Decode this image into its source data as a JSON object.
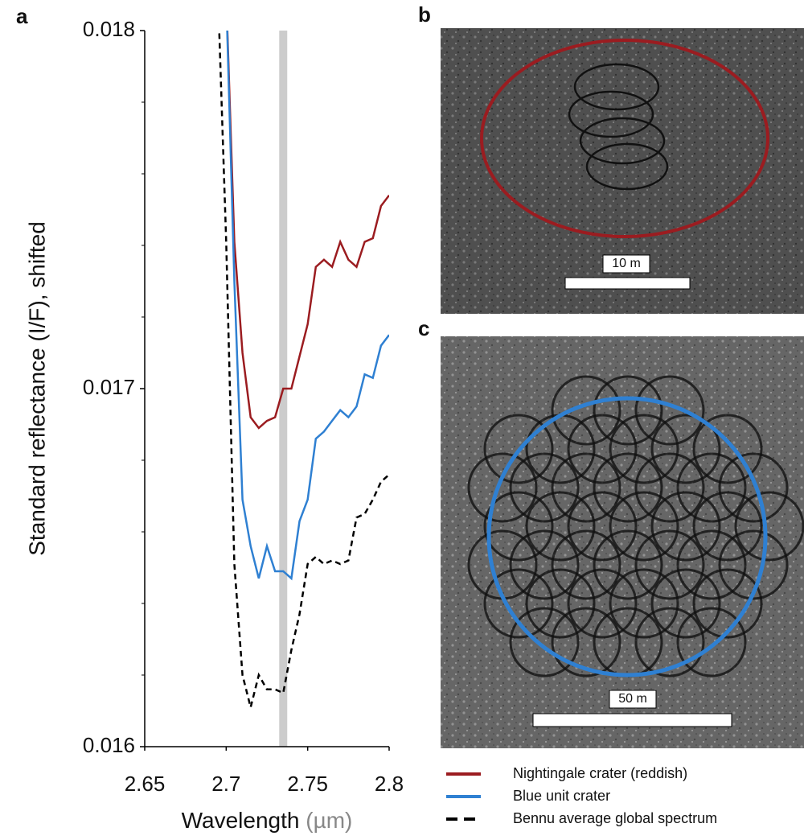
{
  "chart_data": {
    "type": "line",
    "panel_label": "a",
    "y_label": "Standard reflectance (I/F), shifted",
    "x_label": "Wavelength",
    "x_label_unit": "(µm)",
    "x": [
      2.695,
      2.7,
      2.705,
      2.71,
      2.715,
      2.72,
      2.725,
      2.73,
      2.735,
      2.74,
      2.745,
      2.75,
      2.755,
      2.76,
      2.765,
      2.77,
      2.775,
      2.78,
      2.785,
      2.79,
      2.795,
      2.8
    ],
    "series": [
      {
        "name": "Nightingale crater (reddish)",
        "color": "#9b1c20",
        "dash": false,
        "values": [
          null,
          0.0181,
          0.01741,
          0.0171,
          0.01692,
          0.01689,
          0.01691,
          0.01692,
          0.017,
          0.017,
          0.01709,
          0.01718,
          0.01734,
          0.01736,
          0.01734,
          0.01741,
          0.01736,
          0.01734,
          0.01741,
          0.01742,
          0.01751,
          0.01754
        ]
      },
      {
        "name": "Blue unit crater",
        "color": "#2f80d2",
        "dash": false,
        "values": [
          null,
          0.0181,
          0.0173,
          0.01669,
          0.01656,
          0.01647,
          0.01656,
          0.01649,
          0.01649,
          0.01647,
          0.01663,
          0.01669,
          0.01686,
          0.01688,
          0.01691,
          0.01694,
          0.01692,
          0.01695,
          0.01704,
          0.01703,
          0.01712,
          0.01715
        ]
      },
      {
        "name": "Bennu  average global spectrum",
        "color": "#000000",
        "dash": true,
        "values": [
          0.0181,
          0.01741,
          0.01651,
          0.0162,
          0.01611,
          0.0162,
          0.01616,
          0.01616,
          0.01615,
          0.01627,
          0.01637,
          0.01651,
          0.01653,
          0.01651,
          0.01652,
          0.01651,
          0.01652,
          0.01664,
          0.01665,
          0.01669,
          0.01674,
          0.01676
        ]
      }
    ],
    "highlight_x": 2.735,
    "highlight_color": "#cccccc",
    "xlim": [
      2.65,
      2.8
    ],
    "xticks": [
      2.65,
      2.7,
      2.75,
      2.8
    ],
    "ylim": [
      0.016,
      0.018
    ],
    "yticks": [
      0.016,
      0.017,
      0.018
    ],
    "y_minor_ticks": [
      0.0162,
      0.0164,
      0.0166,
      0.0168,
      0.0172,
      0.0174,
      0.0176,
      0.0178
    ]
  },
  "images": [
    {
      "label": "b",
      "scale_bar": "10 m"
    },
    {
      "label": "c",
      "scale_bar": "50 m"
    }
  ]
}
